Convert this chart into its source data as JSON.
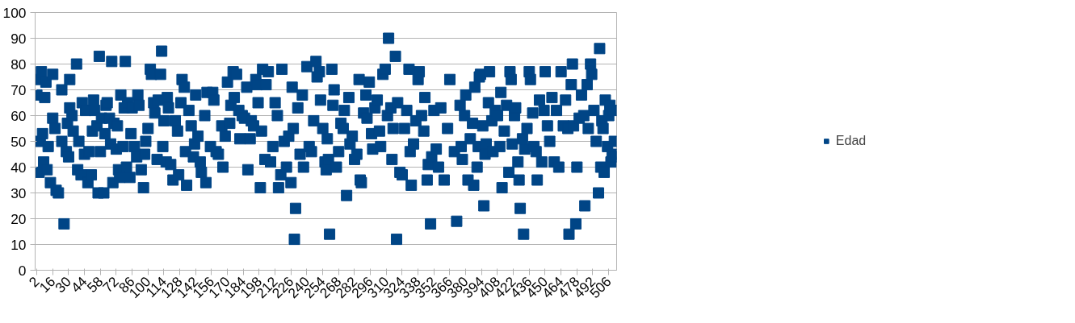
{
  "chart_data": {
    "type": "scatter",
    "marker": "square",
    "grid": "y",
    "legend": "right",
    "xlim": [
      0.5,
      513
    ],
    "ylim": [
      0,
      100
    ],
    "xticks": [
      2,
      16,
      30,
      44,
      58,
      72,
      86,
      100,
      114,
      128,
      142,
      156,
      170,
      184,
      198,
      212,
      226,
      240,
      254,
      268,
      282,
      296,
      310,
      324,
      338,
      352,
      366,
      380,
      394,
      408,
      422,
      436,
      450,
      464,
      478,
      492,
      506
    ],
    "yticks": [
      0,
      10,
      20,
      30,
      40,
      50,
      60,
      70,
      80,
      90,
      100
    ],
    "series": [
      {
        "name": "Edad",
        "color": "#004586",
        "x": [
          2,
          3,
          4,
          5,
          6,
          7,
          8,
          9,
          10,
          11,
          12,
          14,
          16,
          16,
          18,
          19,
          21,
          24,
          24,
          26,
          28,
          29,
          30,
          31,
          31,
          33,
          34,
          37,
          38,
          39,
          41,
          42,
          44,
          45,
          47,
          48,
          50,
          51,
          52,
          53,
          55,
          56,
          57,
          58,
          59,
          61,
          62,
          63,
          64,
          66,
          67,
          68,
          69,
          70,
          72,
          73,
          74,
          75,
          76,
          78,
          79,
          80,
          81,
          82,
          84,
          85,
          86,
          88,
          90,
          91,
          92,
          94,
          96,
          97,
          98,
          100,
          102,
          103,
          105,
          106,
          108,
          109,
          111,
          112,
          113,
          114,
          116,
          117,
          118,
          120,
          122,
          124,
          126,
          127,
          129,
          130,
          132,
          133,
          134,
          136,
          138,
          140,
          141,
          142,
          144,
          146,
          147,
          150,
          151,
          152,
          155,
          157,
          158,
          160,
          162,
          165,
          166,
          168,
          170,
          172,
          173,
          175,
          176,
          178,
          180,
          181,
          183,
          185,
          187,
          188,
          190,
          191,
          193,
          195,
          196,
          197,
          199,
          200,
          201,
          203,
          204,
          206,
          208,
          210,
          212,
          214,
          215,
          217,
          218,
          220,
          222,
          224,
          226,
          227,
          228,
          229,
          230,
          232,
          234,
          236,
          237,
          240,
          242,
          244,
          246,
          248,
          249,
          251,
          252,
          254,
          256,
          257,
          258,
          259,
          260,
          262,
          263,
          264,
          266,
          268,
          270,
          272,
          273,
          275,
          277,
          278,
          280,
          282,
          284,
          286,
          287,
          288,
          290,
          292,
          293,
          295,
          297,
          298,
          300,
          302,
          304,
          305,
          307,
          309,
          311,
          312,
          314,
          315,
          316,
          318,
          319,
          320,
          322,
          324,
          326,
          328,
          330,
          331,
          332,
          334,
          336,
          338,
          339,
          341,
          343,
          344,
          346,
          347,
          349,
          350,
          352,
          354,
          356,
          358,
          361,
          364,
          366,
          370,
          372,
          375,
          376,
          377,
          379,
          380,
          382,
          384,
          386,
          387,
          388,
          390,
          391,
          392,
          393,
          395,
          396,
          397,
          398,
          400,
          401,
          403,
          404,
          406,
          408,
          410,
          411,
          412,
          414,
          416,
          418,
          419,
          420,
          421,
          423,
          424,
          426,
          427,
          428,
          430,
          431,
          432,
          434,
          436,
          437,
          439,
          440,
          442,
          443,
          445,
          447,
          449,
          450,
          452,
          454,
          456,
          458,
          460,
          462,
          464,
          466,
          468,
          470,
          471,
          473,
          474,
          475,
          477,
          478,
          480,
          482,
          484,
          485,
          487,
          488,
          490,
          491,
          493,
          495,
          497,
          498,
          499,
          500,
          501,
          502,
          503,
          505,
          506,
          507,
          508,
          509,
          510,
          511,
          512
        ],
        "values": [
          68,
          74,
          38,
          50,
          77,
          53,
          42,
          67,
          73,
          39,
          48,
          34,
          76,
          59,
          55,
          31,
          30,
          70,
          50,
          18,
          46,
          57,
          44,
          74,
          63,
          60,
          54,
          80,
          39,
          50,
          37,
          65,
          45,
          62,
          34,
          46,
          37,
          54,
          66,
          62,
          56,
          30,
          83,
          46,
          59,
          30,
          53,
          64,
          65,
          59,
          49,
          81,
          34,
          57,
          47,
          56,
          39,
          36,
          68,
          48,
          63,
          81,
          40,
          65,
          36,
          53,
          63,
          48,
          44,
          68,
          64,
          39,
          32,
          45,
          50,
          55,
          78,
          76,
          65,
          61,
          43,
          66,
          76,
          85,
          48,
          58,
          42,
          67,
          63,
          41,
          35,
          58,
          54,
          37,
          65,
          74,
          71,
          46,
          33,
          62,
          56,
          44,
          49,
          68,
          52,
          42,
          38,
          60,
          34,
          69,
          48,
          69,
          66,
          46,
          45,
          56,
          40,
          52,
          73,
          57,
          64,
          77,
          67,
          76,
          62,
          51,
          60,
          59,
          71,
          39,
          51,
          58,
          56,
          74,
          72,
          65,
          32,
          54,
          78,
          43,
          72,
          77,
          42,
          48,
          65,
          60,
          32,
          37,
          78,
          50,
          40,
          52,
          34,
          71,
          55,
          12,
          24,
          63,
          45,
          68,
          40,
          79,
          48,
          46,
          58,
          81,
          75,
          77,
          66,
          55,
          42,
          39,
          51,
          43,
          14,
          78,
          64,
          70,
          40,
          46,
          57,
          55,
          62,
          29,
          67,
          49,
          52,
          43,
          45,
          74,
          35,
          34,
          61,
          68,
          59,
          73,
          53,
          47,
          63,
          66,
          54,
          48,
          76,
          78,
          60,
          90,
          63,
          43,
          55,
          83,
          12,
          65,
          38,
          37,
          55,
          62,
          78,
          46,
          33,
          49,
          58,
          74,
          77,
          60,
          54,
          67,
          35,
          41,
          18,
          44,
          62,
          47,
          40,
          63,
          35,
          55,
          74,
          46,
          19,
          64,
          48,
          43,
          60,
          68,
          35,
          51,
          57,
          33,
          71,
          40,
          48,
          75,
          76,
          56,
          25,
          45,
          49,
          65,
          77,
          58,
          46,
          62,
          60,
          48,
          69,
          32,
          54,
          64,
          38,
          77,
          74,
          49,
          60,
          63,
          42,
          35,
          24,
          51,
          14,
          47,
          55,
          77,
          74,
          61,
          48,
          46,
          35,
          66,
          42,
          62,
          77,
          56,
          50,
          67,
          42,
          62,
          40,
          77,
          56,
          66,
          55,
          14,
          72,
          80,
          56,
          18,
          40,
          59,
          68,
          60,
          25,
          72,
          55,
          80,
          76,
          62,
          50,
          30,
          86,
          40,
          58,
          55,
          38,
          66,
          48,
          60,
          64,
          42,
          45,
          62,
          50,
          44
        ]
      }
    ]
  }
}
